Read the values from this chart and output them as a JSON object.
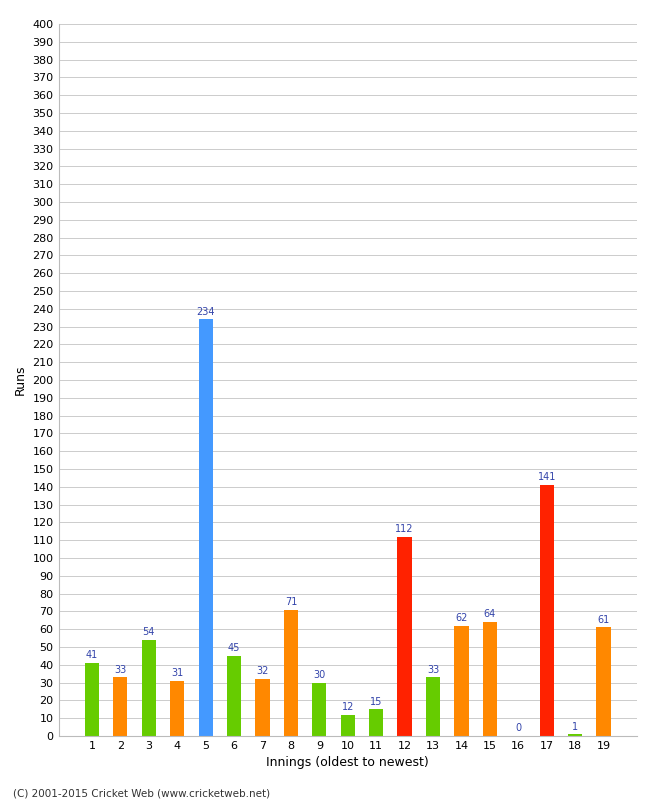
{
  "innings": [
    1,
    2,
    3,
    4,
    5,
    6,
    7,
    8,
    9,
    10,
    11,
    12,
    13,
    14,
    15,
    16,
    17,
    18,
    19
  ],
  "values": [
    41,
    33,
    54,
    31,
    234,
    45,
    32,
    71,
    30,
    12,
    15,
    112,
    33,
    62,
    64,
    0,
    141,
    1,
    61
  ],
  "colors": [
    "#66cc00",
    "#ff8800",
    "#66cc00",
    "#ff8800",
    "#4499ff",
    "#66cc00",
    "#ff8800",
    "#ff8800",
    "#66cc00",
    "#66cc00",
    "#66cc00",
    "#ff2200",
    "#66cc00",
    "#ff8800",
    "#ff8800",
    "#66cc00",
    "#ff2200",
    "#66cc00",
    "#ff8800"
  ],
  "xlabel": "Innings (oldest to newest)",
  "ylabel": "Runs",
  "ylim": [
    0,
    400
  ],
  "ytick_step": 10,
  "label_color": "#3344aa",
  "bg_color": "#ffffff",
  "grid_color": "#cccccc",
  "footer": "(C) 2001-2015 Cricket Web (www.cricketweb.net)"
}
